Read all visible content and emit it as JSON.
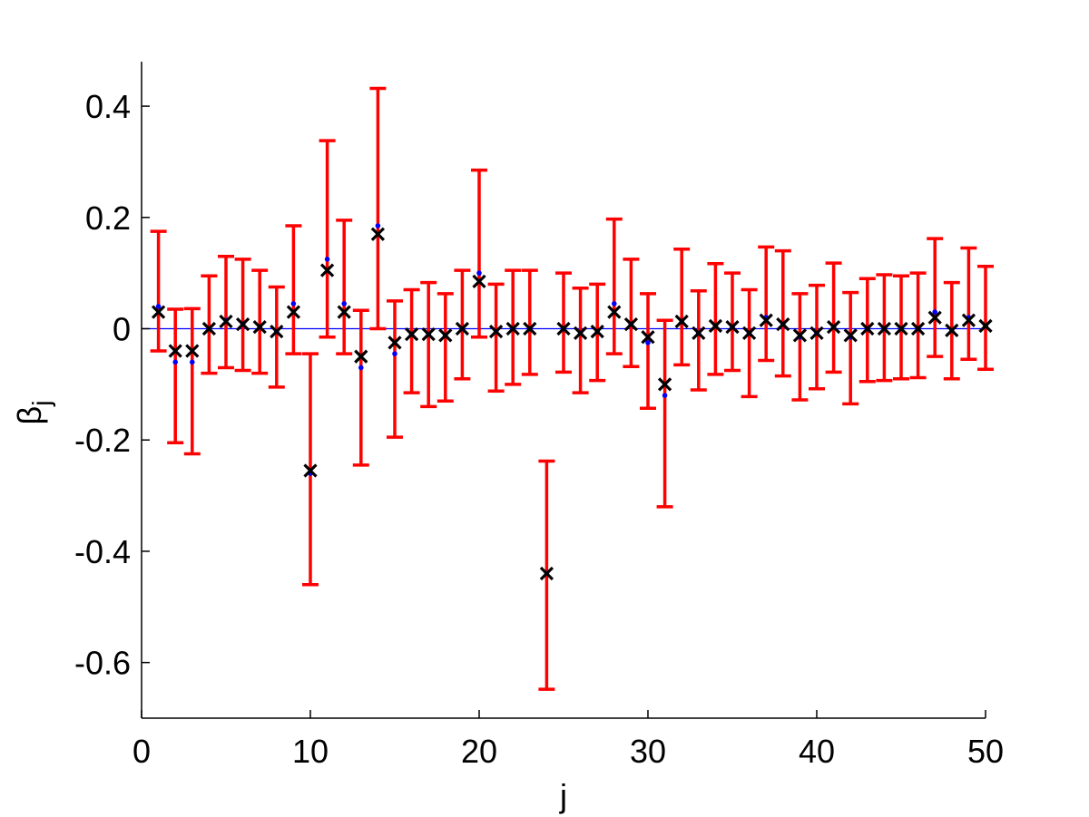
{
  "chart_data": {
    "type": "scatter",
    "xlabel": "j",
    "ylabel_base": "β",
    "ylabel_sub": "j",
    "xlim": [
      0,
      50
    ],
    "ylim": [
      -0.7,
      0.48
    ],
    "xticks": [
      0,
      10,
      20,
      30,
      40,
      50
    ],
    "xtick_labels": [
      "0",
      "10",
      "20",
      "30",
      "40",
      "50"
    ],
    "yticks": [
      -0.6,
      -0.4,
      -0.2,
      0,
      0.2,
      0.4
    ],
    "ytick_labels": [
      "-0.6",
      "-0.4",
      "-0.2",
      "0",
      "0.2",
      "0.4"
    ],
    "reference_line_y": 0,
    "colors": {
      "error_bars": "#ff0000",
      "estimate_markers": "#000000",
      "true_markers": "#0000ff",
      "reference_line": "#0000ff",
      "axes": "#000000"
    },
    "points": [
      {
        "j": 1,
        "estimate": 0.03,
        "true": 0.04,
        "lower": -0.04,
        "upper": 0.175
      },
      {
        "j": 2,
        "estimate": -0.04,
        "true": -0.06,
        "lower": -0.205,
        "upper": 0.035
      },
      {
        "j": 3,
        "estimate": -0.04,
        "true": -0.06,
        "lower": -0.225,
        "upper": 0.036
      },
      {
        "j": 4,
        "estimate": 0.0,
        "true": 0.0,
        "lower": -0.08,
        "upper": 0.095
      },
      {
        "j": 5,
        "estimate": 0.013,
        "true": 0.015,
        "lower": -0.07,
        "upper": 0.13
      },
      {
        "j": 6,
        "estimate": 0.008,
        "true": 0.008,
        "lower": -0.075,
        "upper": 0.125
      },
      {
        "j": 7,
        "estimate": 0.003,
        "true": 0.003,
        "lower": -0.08,
        "upper": 0.105
      },
      {
        "j": 8,
        "estimate": -0.005,
        "true": -0.005,
        "lower": -0.105,
        "upper": 0.075
      },
      {
        "j": 9,
        "estimate": 0.03,
        "true": 0.045,
        "lower": -0.045,
        "upper": 0.185
      },
      {
        "j": 10,
        "estimate": -0.255,
        "true": -0.26,
        "lower": -0.46,
        "upper": -0.045
      },
      {
        "j": 11,
        "estimate": 0.105,
        "true": 0.125,
        "lower": -0.015,
        "upper": 0.338
      },
      {
        "j": 12,
        "estimate": 0.03,
        "true": 0.045,
        "lower": -0.045,
        "upper": 0.195
      },
      {
        "j": 13,
        "estimate": -0.05,
        "true": -0.07,
        "lower": -0.245,
        "upper": 0.033
      },
      {
        "j": 14,
        "estimate": 0.17,
        "true": 0.185,
        "lower": 0.0,
        "upper": 0.432
      },
      {
        "j": 15,
        "estimate": -0.025,
        "true": -0.045,
        "lower": -0.195,
        "upper": 0.05
      },
      {
        "j": 16,
        "estimate": -0.01,
        "true": -0.01,
        "lower": -0.115,
        "upper": 0.07
      },
      {
        "j": 17,
        "estimate": -0.01,
        "true": -0.01,
        "lower": -0.14,
        "upper": 0.083
      },
      {
        "j": 18,
        "estimate": -0.012,
        "true": -0.012,
        "lower": -0.13,
        "upper": 0.063
      },
      {
        "j": 19,
        "estimate": 0.0,
        "true": 0.0,
        "lower": -0.09,
        "upper": 0.105
      },
      {
        "j": 20,
        "estimate": 0.085,
        "true": 0.1,
        "lower": -0.015,
        "upper": 0.285
      },
      {
        "j": 21,
        "estimate": -0.005,
        "true": -0.005,
        "lower": -0.112,
        "upper": 0.08
      },
      {
        "j": 22,
        "estimate": 0.0,
        "true": 0.0,
        "lower": -0.1,
        "upper": 0.105
      },
      {
        "j": 23,
        "estimate": 0.0,
        "true": 0.0,
        "lower": -0.082,
        "upper": 0.105
      },
      {
        "j": 24,
        "estimate": -0.44,
        "true": -0.44,
        "lower": -0.648,
        "upper": -0.238
      },
      {
        "j": 25,
        "estimate": 0.0,
        "true": 0.0,
        "lower": -0.078,
        "upper": 0.1
      },
      {
        "j": 26,
        "estimate": -0.008,
        "true": -0.008,
        "lower": -0.115,
        "upper": 0.073
      },
      {
        "j": 27,
        "estimate": -0.005,
        "true": -0.005,
        "lower": -0.093,
        "upper": 0.08
      },
      {
        "j": 28,
        "estimate": 0.03,
        "true": 0.045,
        "lower": -0.045,
        "upper": 0.197
      },
      {
        "j": 29,
        "estimate": 0.008,
        "true": 0.008,
        "lower": -0.068,
        "upper": 0.125
      },
      {
        "j": 30,
        "estimate": -0.015,
        "true": -0.025,
        "lower": -0.143,
        "upper": 0.063
      },
      {
        "j": 31,
        "estimate": -0.1,
        "true": -0.12,
        "lower": -0.32,
        "upper": 0.015
      },
      {
        "j": 32,
        "estimate": 0.013,
        "true": 0.013,
        "lower": -0.065,
        "upper": 0.143
      },
      {
        "j": 33,
        "estimate": -0.008,
        "true": -0.008,
        "lower": -0.11,
        "upper": 0.068
      },
      {
        "j": 34,
        "estimate": 0.005,
        "true": 0.005,
        "lower": -0.082,
        "upper": 0.117
      },
      {
        "j": 35,
        "estimate": 0.003,
        "true": 0.003,
        "lower": -0.075,
        "upper": 0.1
      },
      {
        "j": 36,
        "estimate": -0.008,
        "true": -0.008,
        "lower": -0.122,
        "upper": 0.07
      },
      {
        "j": 37,
        "estimate": 0.015,
        "true": 0.02,
        "lower": -0.057,
        "upper": 0.147
      },
      {
        "j": 38,
        "estimate": 0.008,
        "true": 0.008,
        "lower": -0.085,
        "upper": 0.14
      },
      {
        "j": 39,
        "estimate": -0.012,
        "true": -0.015,
        "lower": -0.128,
        "upper": 0.063
      },
      {
        "j": 40,
        "estimate": -0.008,
        "true": -0.008,
        "lower": -0.108,
        "upper": 0.078
      },
      {
        "j": 41,
        "estimate": 0.003,
        "true": 0.003,
        "lower": -0.078,
        "upper": 0.118
      },
      {
        "j": 42,
        "estimate": -0.012,
        "true": -0.015,
        "lower": -0.135,
        "upper": 0.065
      },
      {
        "j": 43,
        "estimate": 0.0,
        "true": 0.0,
        "lower": -0.095,
        "upper": 0.09
      },
      {
        "j": 44,
        "estimate": 0.0,
        "true": 0.0,
        "lower": -0.093,
        "upper": 0.097
      },
      {
        "j": 45,
        "estimate": 0.0,
        "true": 0.0,
        "lower": -0.09,
        "upper": 0.095
      },
      {
        "j": 46,
        "estimate": 0.0,
        "true": 0.0,
        "lower": -0.088,
        "upper": 0.1
      },
      {
        "j": 47,
        "estimate": 0.02,
        "true": 0.03,
        "lower": -0.05,
        "upper": 0.162
      },
      {
        "j": 48,
        "estimate": -0.003,
        "true": -0.003,
        "lower": -0.09,
        "upper": 0.083
      },
      {
        "j": 49,
        "estimate": 0.015,
        "true": 0.02,
        "lower": -0.055,
        "upper": 0.145
      },
      {
        "j": 50,
        "estimate": 0.005,
        "true": 0.005,
        "lower": -0.073,
        "upper": 0.112
      }
    ]
  }
}
